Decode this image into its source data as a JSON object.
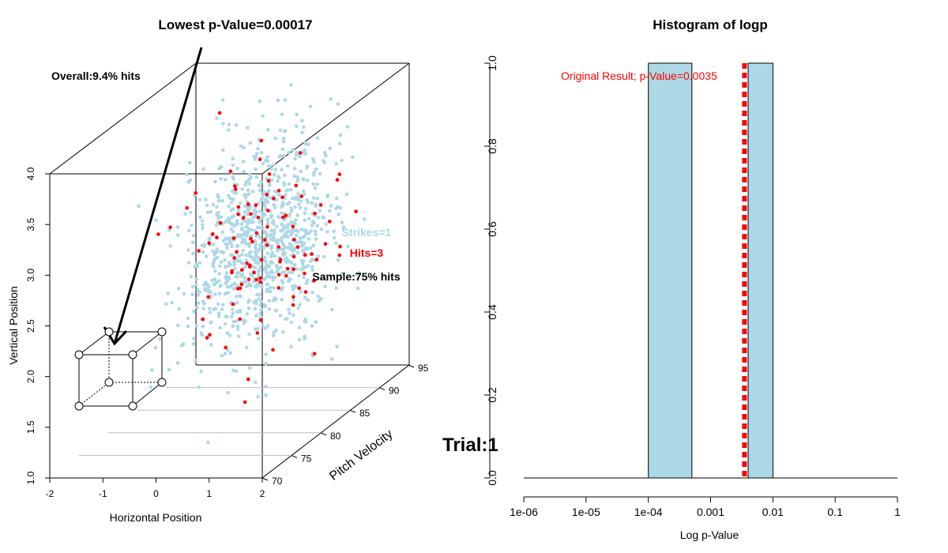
{
  "left_panel": {
    "title": "Lowest p-Value=0.00017",
    "overall_text": "Overall:9.4% hits",
    "legend_strikes": "Strikes=1",
    "legend_hits": "Hits=3",
    "sample_text": "Sample:75% hits",
    "xlabel": "Horizontal Position",
    "ylabel": "Vertical Position",
    "zlabel": "Pitch Velocity",
    "x_ticks": [
      "-2",
      "-1",
      "0",
      "1",
      "2"
    ],
    "y_ticks": [
      "1.0",
      "1.5",
      "2.0",
      "2.5",
      "3.0",
      "3.5",
      "4.0"
    ],
    "z_ticks": [
      "70",
      "75",
      "80",
      "85",
      "90",
      "95"
    ],
    "colors": {
      "strike": "#add8e6",
      "hit": "#ff0000"
    }
  },
  "trial_text": "Trial:1",
  "chart_data": [
    {
      "type": "scatter",
      "title": "Lowest p-Value=0.00017",
      "xlabel": "Horizontal Position",
      "ylabel": "Vertical Position",
      "zlabel": "Pitch Velocity",
      "xlim": [
        -2,
        2
      ],
      "ylim": [
        1.0,
        4.0
      ],
      "zlim": [
        70,
        95
      ],
      "series": [
        {
          "name": "Strikes=1",
          "color": "#add8e6"
        },
        {
          "name": "Hits=3",
          "color": "#ff0000"
        }
      ],
      "annotations": [
        "Overall:9.4% hits",
        "Sample:75% hits"
      ]
    },
    {
      "type": "bar",
      "title": "Histogram of logp",
      "xlabel": "Log p-Value",
      "ylabel": "",
      "x_scale": "log",
      "x_ticks": [
        "1e-06",
        "1e-05",
        "1e-04",
        "0.001",
        "0.01",
        "0.1",
        "1"
      ],
      "y_ticks": [
        "0.0",
        "0.2",
        "0.4",
        "0.6",
        "0.8",
        "1.0"
      ],
      "ylim": [
        0,
        1.0
      ],
      "bins": [
        {
          "from": 0.0001,
          "to": 0.0005,
          "value": 1.0
        },
        {
          "from": 0.004,
          "to": 0.01,
          "value": 1.0
        }
      ],
      "bar_color": "#add8e6",
      "reference_line": {
        "x": 0.0035,
        "color": "#ff0000",
        "label": "Original Result; p-Value=0.0035"
      }
    }
  ]
}
